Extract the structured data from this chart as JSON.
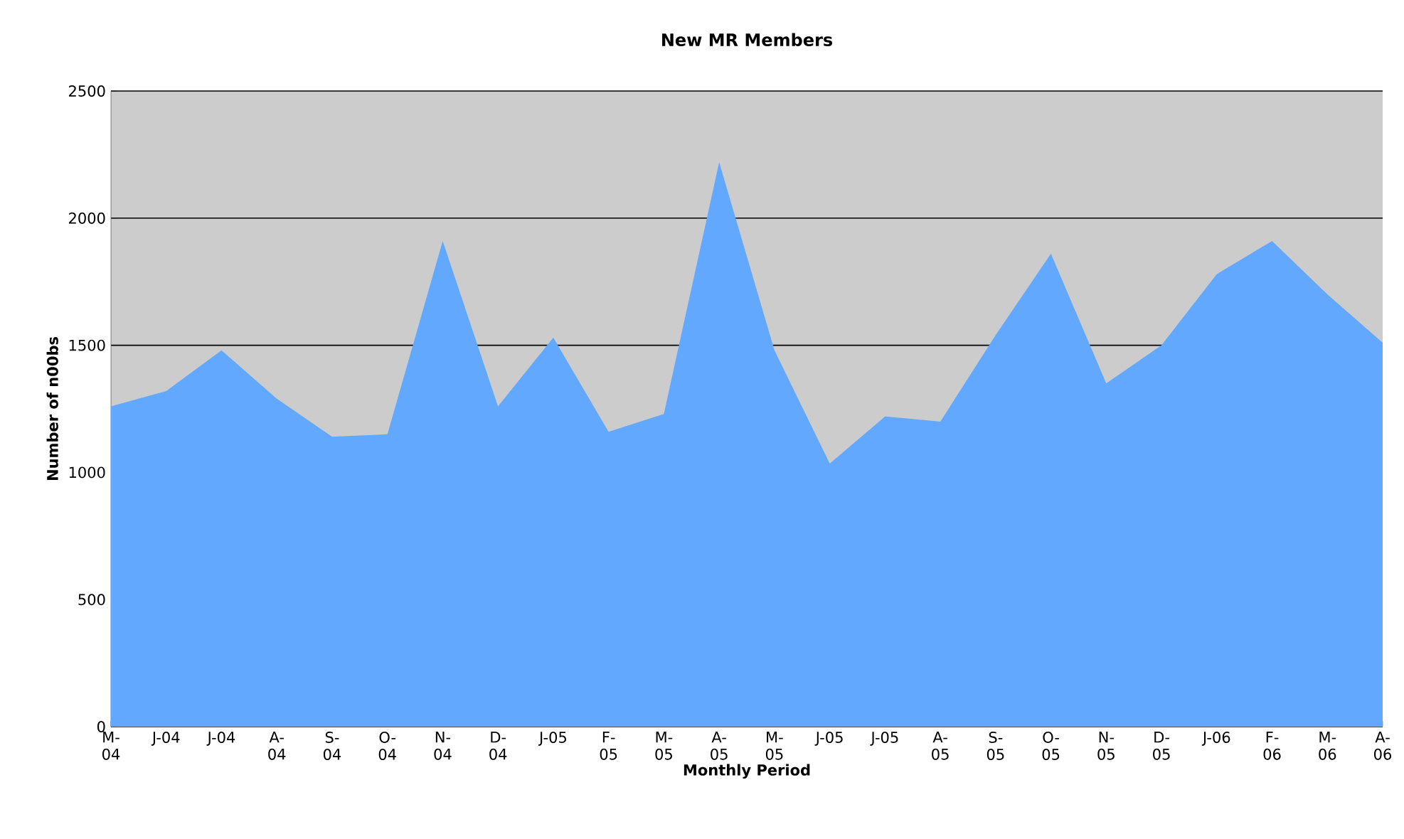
{
  "chart_data": {
    "type": "area",
    "title": "New MR Members",
    "xlabel": "Monthly Period",
    "ylabel": "Number of n00bs",
    "categories": [
      "M-04",
      "J-04",
      "J-04",
      "A-04",
      "S-04",
      "O-04",
      "N-04",
      "D-04",
      "J-05",
      "F-05",
      "M-05",
      "A-05",
      "M-05",
      "J-05",
      "J-05",
      "A-05",
      "S-05",
      "O-05",
      "N-05",
      "D-05",
      "J-06",
      "F-06",
      "M-06",
      "A-06"
    ],
    "values": [
      1260,
      1320,
      1480,
      1290,
      1140,
      1150,
      1910,
      1260,
      1530,
      1160,
      1230,
      2220,
      1480,
      1035,
      1220,
      1200,
      1540,
      1860,
      1350,
      1500,
      1780,
      1910,
      1700,
      1510
    ],
    "color": "#62a8ff",
    "ylim": [
      0,
      2500
    ],
    "yticks": [
      0,
      500,
      1000,
      1500,
      2000,
      2500
    ],
    "grid": "y"
  }
}
